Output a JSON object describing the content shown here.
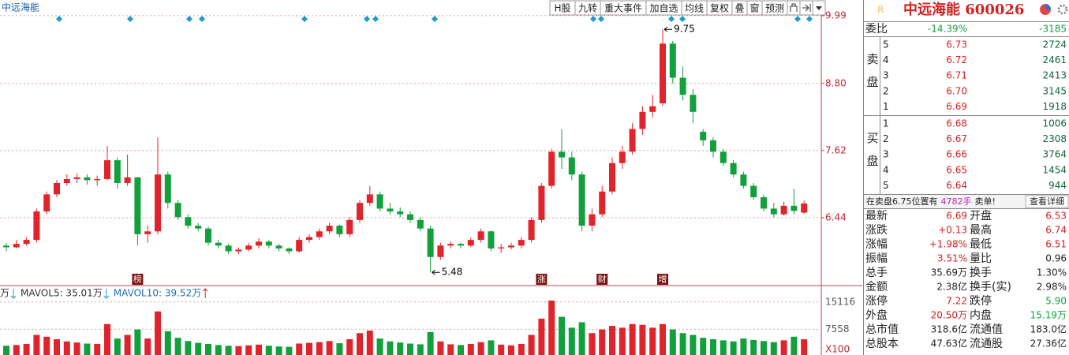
{
  "chart": {
    "type": "candlestick",
    "title": "中远海能",
    "up_color": "#e0242b",
    "down_color": "#12a03c",
    "ylim": [
      5.275,
      10.1
    ],
    "yticks": [
      6.44,
      7.62,
      {
        "value": 8.8,
        "label": "8.80"
      },
      9.99
    ],
    "ohlc": [
      [
        5.95,
        6.0,
        5.85,
        5.92
      ],
      [
        5.92,
        6.05,
        5.9,
        5.98
      ],
      [
        5.98,
        6.1,
        5.95,
        6.05
      ],
      [
        6.05,
        6.6,
        6.0,
        6.55
      ],
      [
        6.55,
        6.9,
        6.5,
        6.85
      ],
      [
        6.85,
        7.1,
        6.8,
        7.05
      ],
      [
        7.05,
        7.2,
        7.0,
        7.12
      ],
      [
        7.12,
        7.22,
        7.05,
        7.15
      ],
      [
        7.15,
        7.2,
        7.02,
        7.1
      ],
      [
        7.1,
        7.18,
        7.0,
        7.12
      ],
      [
        7.12,
        7.7,
        7.1,
        7.45
      ],
      [
        7.45,
        7.5,
        6.95,
        7.05
      ],
      [
        7.05,
        7.55,
        7.0,
        7.15
      ],
      [
        7.15,
        7.15,
        5.95,
        6.15
      ],
      [
        6.15,
        6.3,
        6.0,
        6.2
      ],
      [
        6.2,
        7.85,
        6.15,
        7.2
      ],
      [
        7.2,
        7.25,
        6.6,
        6.7
      ],
      [
        6.7,
        6.75,
        6.4,
        6.45
      ],
      [
        6.45,
        6.5,
        6.25,
        6.3
      ],
      [
        6.3,
        6.35,
        6.2,
        6.25
      ],
      [
        6.25,
        6.28,
        5.95,
        6.0
      ],
      [
        6.0,
        6.05,
        5.9,
        5.95
      ],
      [
        5.95,
        5.98,
        5.8,
        5.85
      ],
      [
        5.85,
        5.92,
        5.8,
        5.88
      ],
      [
        5.88,
        6.0,
        5.85,
        5.95
      ],
      [
        5.95,
        6.08,
        5.9,
        6.02
      ],
      [
        6.02,
        6.05,
        5.9,
        5.95
      ],
      [
        5.95,
        5.98,
        5.85,
        5.9
      ],
      [
        5.9,
        5.92,
        5.8,
        5.85
      ],
      [
        5.85,
        6.1,
        5.83,
        6.05
      ],
      [
        6.05,
        6.15,
        6.0,
        6.1
      ],
      [
        6.1,
        6.25,
        6.05,
        6.2
      ],
      [
        6.2,
        6.35,
        6.15,
        6.3
      ],
      [
        6.3,
        6.32,
        6.1,
        6.15
      ],
      [
        6.15,
        6.45,
        6.1,
        6.4
      ],
      [
        6.4,
        6.75,
        6.35,
        6.7
      ],
      [
        6.7,
        7.0,
        6.65,
        6.85
      ],
      [
        6.85,
        6.9,
        6.55,
        6.6
      ],
      [
        6.6,
        6.7,
        6.5,
        6.55
      ],
      [
        6.55,
        6.62,
        6.45,
        6.5
      ],
      [
        6.5,
        6.55,
        6.35,
        6.4
      ],
      [
        6.4,
        6.45,
        6.2,
        6.25
      ],
      [
        6.25,
        6.3,
        5.48,
        5.75
      ],
      [
        5.75,
        6.0,
        5.7,
        5.95
      ],
      [
        5.95,
        6.02,
        5.9,
        5.98
      ],
      [
        5.98,
        6.0,
        5.9,
        5.95
      ],
      [
        5.95,
        6.1,
        5.92,
        6.05
      ],
      [
        6.05,
        6.25,
        6.0,
        6.2
      ],
      [
        6.2,
        6.22,
        5.85,
        5.9
      ],
      [
        5.9,
        5.98,
        5.82,
        5.92
      ],
      [
        5.92,
        6.0,
        5.88,
        5.95
      ],
      [
        5.95,
        6.1,
        5.9,
        6.05
      ],
      [
        6.05,
        6.45,
        6.0,
        6.4
      ],
      [
        6.4,
        7.05,
        6.35,
        7.0
      ],
      [
        7.0,
        7.65,
        6.95,
        7.6
      ],
      [
        7.6,
        8.0,
        7.3,
        7.5
      ],
      [
        7.5,
        7.6,
        7.1,
        7.2
      ],
      [
        7.2,
        7.25,
        6.2,
        6.3
      ],
      [
        6.3,
        6.6,
        6.2,
        6.5
      ],
      [
        6.5,
        7.0,
        6.45,
        6.9
      ],
      [
        6.9,
        7.5,
        6.85,
        7.4
      ],
      [
        7.4,
        7.7,
        7.3,
        7.6
      ],
      [
        7.6,
        8.1,
        7.55,
        8.0
      ],
      [
        8.0,
        8.4,
        7.9,
        8.3
      ],
      [
        8.3,
        8.6,
        8.2,
        8.4
      ],
      [
        8.45,
        9.75,
        8.4,
        9.5
      ],
      [
        9.5,
        9.55,
        8.8,
        8.9
      ],
      [
        8.9,
        9.1,
        8.5,
        8.6
      ],
      [
        8.6,
        8.7,
        8.1,
        8.3
      ],
      [
        7.95,
        8.0,
        7.7,
        7.8
      ],
      [
        7.8,
        7.85,
        7.5,
        7.6
      ],
      [
        7.6,
        7.65,
        7.35,
        7.4
      ],
      [
        7.4,
        7.45,
        7.15,
        7.2
      ],
      [
        7.2,
        7.25,
        6.95,
        7.0
      ],
      [
        7.0,
        7.05,
        6.75,
        6.8
      ],
      [
        6.8,
        6.85,
        6.55,
        6.6
      ],
      [
        6.6,
        6.7,
        6.45,
        6.5
      ],
      [
        6.5,
        6.72,
        6.48,
        6.65
      ],
      [
        6.65,
        6.95,
        6.5,
        6.56
      ],
      [
        6.53,
        6.74,
        6.51,
        6.69
      ]
    ],
    "high_label": 9.75,
    "low_label": 5.48,
    "events": [
      "榜",
      "涨",
      "财",
      "增"
    ],
    "volume_ylim": [
      0,
      19000
    ],
    "volume_yticks": [
      7558,
      15116
    ],
    "volume_unit": "X100",
    "volume": [
      3000,
      3200,
      3500,
      6000,
      5500,
      4800,
      4200,
      3900,
      3600,
      3500,
      9000,
      5000,
      6000,
      7500,
      5000,
      12500,
      7000,
      5200,
      4300,
      3800,
      3500,
      3200,
      3000,
      2900,
      3100,
      3300,
      3000,
      2800,
      2700,
      3600,
      3800,
      4000,
      4300,
      3700,
      4800,
      6500,
      7200,
      5000,
      4200,
      3900,
      3600,
      3400,
      6800,
      4200,
      3400,
      3200,
      3500,
      4000,
      4500,
      3300,
      3100,
      3500,
      6000,
      10500,
      15500,
      11000,
      8000,
      9500,
      6500,
      7500,
      8500,
      8000,
      9000,
      8800,
      8000,
      9000,
      7500,
      6500,
      6000,
      5200,
      4800,
      4500,
      4200,
      5000,
      4600,
      4300,
      4000,
      4500,
      5500,
      4800
    ],
    "volume_legend": [
      "万",
      "MAVOL5: 35.01万",
      "MAVOL10: 39.52万"
    ],
    "toolbar": [
      "H股",
      "九转",
      "重大事件",
      "加自选",
      "均线",
      "复权",
      "叠",
      "窗",
      "预测"
    ]
  },
  "quote": {
    "badge": "R",
    "title": "中远海能 600026",
    "weibi": [
      "委比",
      "-14.39%",
      "-3185"
    ],
    "sell_label": "卖盘",
    "buy_label": "买盘",
    "sell": [
      [
        "5",
        "6.73",
        "2724"
      ],
      [
        "4",
        "6.72",
        "2461"
      ],
      [
        "3",
        "6.71",
        "2413"
      ],
      [
        "2",
        "6.70",
        "3145"
      ],
      [
        "1",
        "6.69",
        "1918"
      ]
    ],
    "buy": [
      [
        "1",
        "6.68",
        "1006"
      ],
      [
        "2",
        "6.67",
        "2308"
      ],
      [
        "3",
        "6.66",
        "3764"
      ],
      [
        "4",
        "6.65",
        "1454"
      ],
      [
        "5",
        "6.64",
        "944"
      ]
    ],
    "notice": [
      "在卖盘6.75位置有",
      "4782手",
      "卖单!",
      "查看详细"
    ],
    "stats": [
      [
        "最新",
        "6.69",
        "开盘",
        "6.53"
      ],
      [
        "涨跌",
        "+0.13",
        "最高",
        "6.74"
      ],
      [
        "涨幅",
        "+1.98%",
        "最低",
        "6.51"
      ],
      [
        "振幅",
        "3.51%",
        "量比",
        "0.96"
      ],
      [
        "总手",
        "35.69万",
        "换手",
        "1.30%"
      ],
      [
        "金额",
        "2.38亿",
        "换手(实)",
        "2.98%"
      ],
      [
        "涨停",
        "7.22",
        "跌停",
        "5.90"
      ],
      [
        "外盘",
        "20.50万",
        "内盘",
        "15.19万"
      ],
      [
        "总市值",
        "318.6亿",
        "流通值",
        "183.0亿"
      ],
      [
        "总股本",
        "47.63亿",
        "流通股",
        "27.36亿"
      ]
    ]
  }
}
